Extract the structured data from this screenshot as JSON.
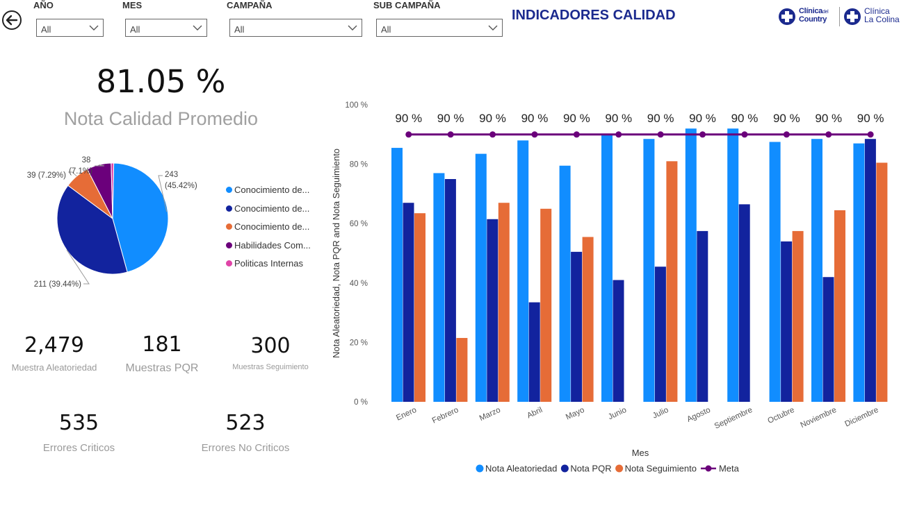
{
  "filters": [
    {
      "label": "AÑO",
      "value": "All"
    },
    {
      "label": "MES",
      "value": "All"
    },
    {
      "label": "CAMPAÑA",
      "value": "All"
    },
    {
      "label": "SUB CAMPAÑA",
      "value": "All"
    }
  ],
  "header": {
    "title": "INDICADORES CALIDAD",
    "logo1_line1": "Clínica",
    "logo1_del": "del",
    "logo1_line2": "Country",
    "logo2_line1": "Clínica",
    "logo2_line2": "La Colina"
  },
  "kpi_main": {
    "value": "81.05 %",
    "label": "Nota Calidad Promedio"
  },
  "kpis": [
    {
      "value": "2,479",
      "label": "Muestra Aleatoriedad"
    },
    {
      "value": "181",
      "label": "Muestras PQR"
    },
    {
      "value": "300",
      "label": "Muestras Seguimiento"
    },
    {
      "value": "535",
      "label": "Errores Criticos"
    },
    {
      "value": "523",
      "label": "Errores No Criticos"
    }
  ],
  "colors": {
    "aleatoriedad": "#118dff",
    "pqr": "#12239e",
    "seguimiento": "#e66c37",
    "meta": "#6b007b",
    "politicas": "#e044a7"
  },
  "chart_data": [
    {
      "type": "pie",
      "slices": [
        {
          "name": "Conocimiento de...",
          "value": 243,
          "label": "243",
          "pct_label": "(45.42%)",
          "color": "#118dff"
        },
        {
          "name": "Conocimiento de...",
          "value": 211,
          "label": "211 (39.44%)",
          "color": "#12239e"
        },
        {
          "name": "Conocimiento de...",
          "value": 39,
          "label": "39 (7.29%)",
          "color": "#e66c37"
        },
        {
          "name": "Habilidades Com...",
          "value": 38,
          "label": "38",
          "pct_label": "(7.1%)",
          "color": "#6b007b"
        },
        {
          "name": "Politicas Internas",
          "value": 4,
          "color": "#e044a7"
        }
      ]
    },
    {
      "type": "bar",
      "categories": [
        "Enero",
        "Febrero",
        "Marzo",
        "Abril",
        "Mayo",
        "Junio",
        "Julio",
        "Agosto",
        "Septiembre",
        "Octubre",
        "Noviembre",
        "Diciembre"
      ],
      "series": [
        {
          "name": "Nota Aleatoriedad",
          "color": "#118dff",
          "values": [
            85.5,
            77,
            83.5,
            88,
            79.5,
            90,
            88.5,
            92,
            92,
            87.5,
            88.5,
            87
          ]
        },
        {
          "name": "Nota PQR",
          "color": "#12239e",
          "values": [
            67,
            75,
            61.5,
            33.5,
            50.5,
            41,
            45.5,
            57.5,
            66.5,
            54,
            42,
            88.5
          ]
        },
        {
          "name": "Nota Seguimiento",
          "color": "#e66c37",
          "values": [
            63.5,
            21.5,
            67,
            65,
            55.5,
            null,
            81,
            null,
            null,
            57.5,
            64.5,
            80.5
          ]
        },
        {
          "name": "Meta",
          "type": "line",
          "color": "#6b007b",
          "values": [
            90,
            90,
            90,
            90,
            90,
            90,
            90,
            90,
            90,
            90,
            90,
            90
          ],
          "labels": [
            "90 %",
            "90 %",
            "90 %",
            "90 %",
            "90 %",
            "90 %",
            "90 %",
            "90 %",
            "90 %",
            "90 %",
            "90 %",
            "90 %"
          ]
        }
      ],
      "yticks": [
        "0 %",
        "20 %",
        "40 %",
        "60 %",
        "80 %",
        "100 %"
      ],
      "ylim": [
        0,
        100
      ],
      "xlabel": "Mes",
      "ylabel": "Nota Aleatoriedad, Nota PQR and Nota Seguimiento",
      "legend": "bottom"
    }
  ]
}
